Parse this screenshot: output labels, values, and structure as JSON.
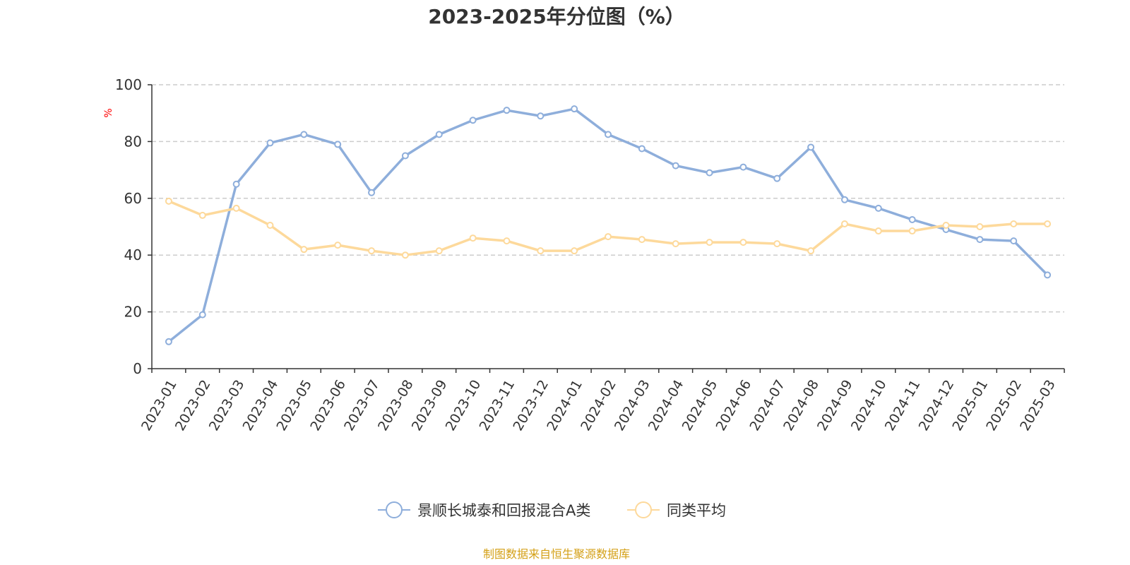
{
  "chart_data": {
    "type": "line",
    "title": "2023-2025年分位图（%）",
    "ylabel": "%",
    "xlabel": "",
    "ylim": [
      0,
      100
    ],
    "yticks": [
      0,
      20,
      40,
      60,
      80,
      100
    ],
    "grid": true,
    "legend_position": "bottom-center",
    "categories": [
      "2023-01",
      "2023-02",
      "2023-03",
      "2023-04",
      "2023-05",
      "2023-06",
      "2023-07",
      "2023-08",
      "2023-09",
      "2023-10",
      "2023-11",
      "2023-12",
      "2024-01",
      "2024-02",
      "2024-03",
      "2024-04",
      "2024-05",
      "2024-06",
      "2024-07",
      "2024-08",
      "2024-09",
      "2024-10",
      "2024-11",
      "2024-12",
      "2025-01",
      "2025-02",
      "2025-03"
    ],
    "series": [
      {
        "name": "景顺长城泰和回报混合A类",
        "color": "#8eaedb",
        "values": [
          9.5,
          19,
          65,
          79.5,
          82.5,
          79,
          62,
          75,
          82.5,
          87.5,
          91,
          89,
          91.5,
          82.5,
          77.5,
          71.5,
          69,
          71,
          67,
          78,
          59.5,
          56.5,
          52.5,
          49,
          45.5,
          45,
          33
        ]
      },
      {
        "name": "同类平均",
        "color": "#fdd99b",
        "values": [
          59,
          54,
          56.5,
          50.5,
          42,
          43.5,
          41.5,
          40,
          41.5,
          46,
          45,
          41.5,
          41.5,
          46.5,
          45.5,
          44,
          44.5,
          44.5,
          44,
          41.5,
          51,
          48.5,
          48.5,
          50.5,
          50,
          51,
          51
        ]
      }
    ],
    "source": "制图数据来自恒生聚源数据库",
    "colors": {
      "axis": "#333333",
      "grid": "#cccccc",
      "ylabel": "#ff0000",
      "source": "#d4a017"
    }
  }
}
